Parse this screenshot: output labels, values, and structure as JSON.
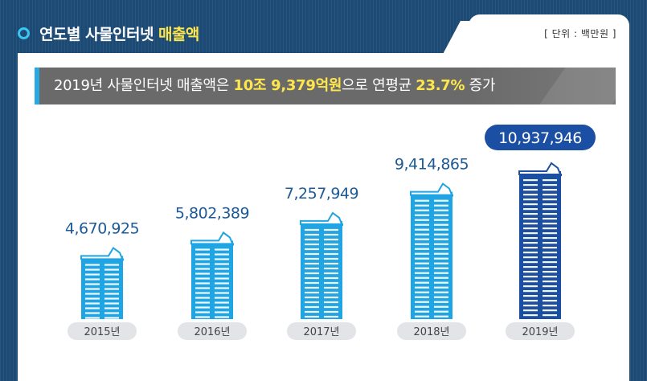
{
  "title": {
    "main": "연도별 사물인터넷",
    "highlight": "매출액"
  },
  "unit": "[ 단위 : 백만원 ]",
  "banner": {
    "prefix": "2019년 사물인터넷 매출액은",
    "amount": "10조 9,379억원",
    "middle": "으로 연평균",
    "rate": "23.7%",
    "suffix": "증가"
  },
  "colors": {
    "bar_light": "#1fa5e3",
    "bar_dark": "#1b4fa3",
    "pill": "#e3e4e7",
    "value_text": "#1c5a98",
    "highlight": "#ffe74a"
  },
  "chart_data": {
    "type": "bar",
    "categories": [
      "2015년",
      "2016년",
      "2017년",
      "2018년",
      "2019년"
    ],
    "values": [
      4670925,
      5802389,
      7257949,
      9414865,
      10937946
    ],
    "value_labels": [
      "4,670,925",
      "5,802,389",
      "7,257,949",
      "9,414,865",
      "10,937,946"
    ],
    "title": "연도별 사물인터넷 매출액",
    "unit": "백만원"
  }
}
